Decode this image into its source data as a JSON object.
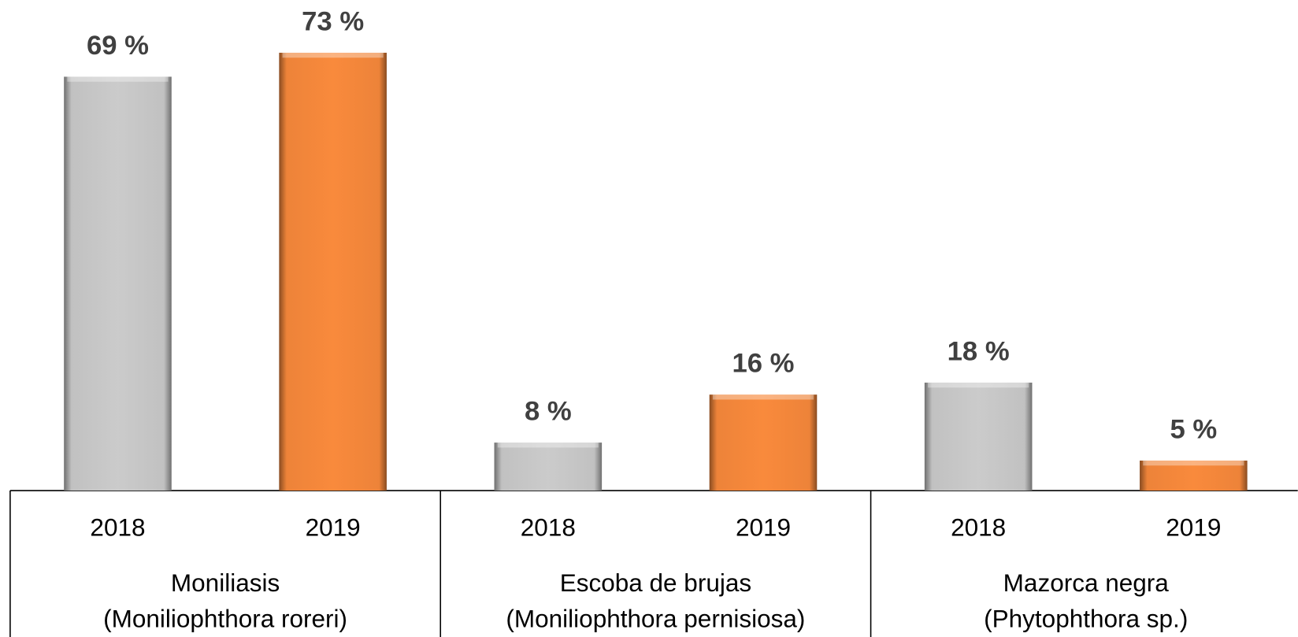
{
  "chart_data": {
    "type": "bar",
    "groups": [
      {
        "name": [
          "Moniliasis",
          "(Moniliophthora roreri)"
        ],
        "categories": [
          "2018",
          "2019"
        ],
        "values": [
          69,
          73
        ],
        "value_labels": [
          "69 %",
          "73 %"
        ]
      },
      {
        "name": [
          "Escoba de brujas",
          "(Moniliophthora pernisiosa)"
        ],
        "categories": [
          "2018",
          "2019"
        ],
        "values": [
          8,
          16
        ],
        "value_labels": [
          "8 %",
          "16 %"
        ]
      },
      {
        "name": [
          "Mazorca negra",
          "(Phytophthora sp.)"
        ],
        "categories": [
          "2018",
          "2019"
        ],
        "values": [
          18,
          5
        ],
        "value_labels": [
          "18 %",
          "5 %"
        ]
      }
    ],
    "colors": [
      "#cbcbcb",
      "#f98a3c"
    ],
    "ylim": [
      0,
      80
    ]
  }
}
